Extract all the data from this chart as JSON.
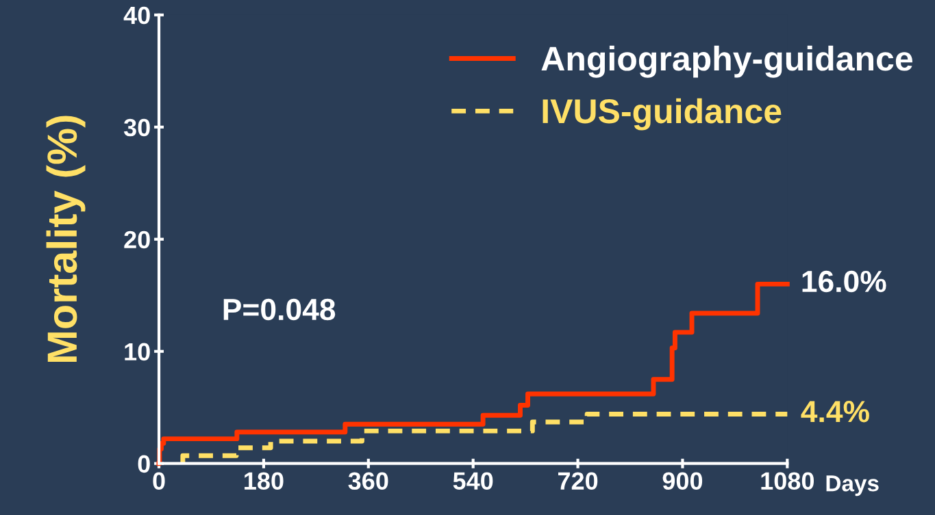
{
  "chart_data": {
    "type": "step",
    "ylabel": "Mortality (%)",
    "xlabel": "Days",
    "xlim": [
      0,
      1080
    ],
    "xticks": [
      0,
      180,
      360,
      540,
      720,
      900,
      1080
    ],
    "ylim": [
      0,
      40
    ],
    "yticks": [
      0,
      10,
      20,
      30,
      40
    ],
    "grid": false,
    "legend": "top right",
    "marker": "none",
    "series": [
      {
        "name": "Angiography-guidance",
        "color": "#ff3300",
        "line_style": "solid",
        "x": [
          0,
          1,
          4,
          8,
          134,
          320,
          557,
          621,
          634,
          850,
          882,
          887,
          916,
          1029,
          1080
        ],
        "values": [
          0,
          1.3,
          1.8,
          2.2,
          2.8,
          3.5,
          4.3,
          5.2,
          6.2,
          7.5,
          10.3,
          11.7,
          13.4,
          16.0,
          16.0
        ]
      },
      {
        "name": "IVUS-guidance",
        "color": "#ffe066",
        "line_style": "dashed",
        "x": [
          41,
          41,
          133,
          192,
          349,
          642,
          736,
          1080
        ],
        "values": [
          0,
          0.7,
          1.4,
          2.0,
          2.9,
          3.7,
          4.4,
          4.4
        ]
      }
    ],
    "annotations": [
      "P=0.048",
      {
        "text": "16.0%",
        "x": 1080,
        "y": 16.0
      },
      {
        "text": "4.4%",
        "x": 1080,
        "y": 4.4
      }
    ]
  }
}
